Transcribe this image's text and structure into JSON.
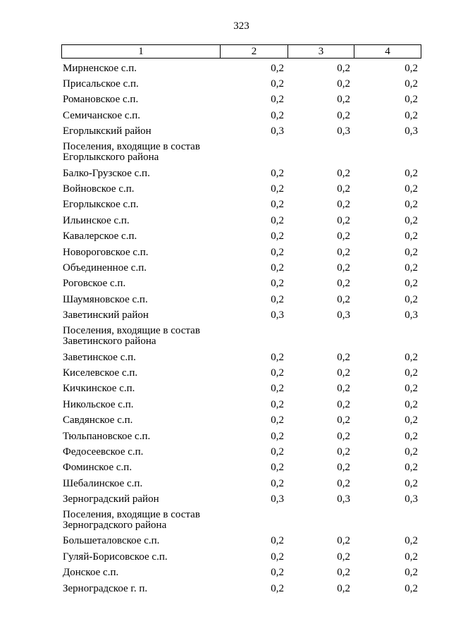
{
  "page": {
    "number": "323"
  },
  "table": {
    "header": [
      "1",
      "2",
      "3",
      "4"
    ],
    "rows": [
      {
        "type": "data",
        "label": "Мирненское с.п.",
        "values": [
          "0,2",
          "0,2",
          "0,2"
        ]
      },
      {
        "type": "data",
        "label": "Присальское с.п.",
        "values": [
          "0,2",
          "0,2",
          "0,2"
        ]
      },
      {
        "type": "data",
        "label": "Романовское с.п.",
        "values": [
          "0,2",
          "0,2",
          "0,2"
        ]
      },
      {
        "type": "data",
        "label": "Семичанское с.п.",
        "values": [
          "0,2",
          "0,2",
          "0,2"
        ]
      },
      {
        "type": "data",
        "label": "Егорлыкский район",
        "values": [
          "0,3",
          "0,3",
          "0,3"
        ]
      },
      {
        "type": "section",
        "label": "Поселения, входящие в состав Егорлыкского района",
        "values": [
          "",
          "",
          ""
        ]
      },
      {
        "type": "data",
        "label": "Балко-Грузское с.п.",
        "values": [
          "0,2",
          "0,2",
          "0,2"
        ]
      },
      {
        "type": "data",
        "label": "Войновское с.п.",
        "values": [
          "0,2",
          "0,2",
          "0,2"
        ]
      },
      {
        "type": "data",
        "label": "Егорлыкское с.п.",
        "values": [
          "0,2",
          "0,2",
          "0,2"
        ]
      },
      {
        "type": "data",
        "label": "Ильинское с.п.",
        "values": [
          "0,2",
          "0,2",
          "0,2"
        ]
      },
      {
        "type": "data",
        "label": "Кавалерское с.п.",
        "values": [
          "0,2",
          "0,2",
          "0,2"
        ]
      },
      {
        "type": "data",
        "label": "Новороговское с.п.",
        "values": [
          "0,2",
          "0,2",
          "0,2"
        ]
      },
      {
        "type": "data",
        "label": "Объединенное с.п.",
        "values": [
          "0,2",
          "0,2",
          "0,2"
        ]
      },
      {
        "type": "data",
        "label": "Роговское с.п.",
        "values": [
          "0,2",
          "0,2",
          "0,2"
        ]
      },
      {
        "type": "data",
        "label": "Шаумяновское с.п.",
        "values": [
          "0,2",
          "0,2",
          "0,2"
        ]
      },
      {
        "type": "data",
        "label": "Заветинский район",
        "values": [
          "0,3",
          "0,3",
          "0,3"
        ]
      },
      {
        "type": "section",
        "label": "Поселения, входящие в состав Заветинского района",
        "values": [
          "",
          "",
          ""
        ]
      },
      {
        "type": "data",
        "label": "Заветинское с.п.",
        "values": [
          "0,2",
          "0,2",
          "0,2"
        ]
      },
      {
        "type": "data",
        "label": "Киселевское с.п.",
        "values": [
          "0,2",
          "0,2",
          "0,2"
        ]
      },
      {
        "type": "data",
        "label": "Кичкинское с.п.",
        "values": [
          "0,2",
          "0,2",
          "0,2"
        ]
      },
      {
        "type": "data",
        "label": "Никольское с.п.",
        "values": [
          "0,2",
          "0,2",
          "0,2"
        ]
      },
      {
        "type": "data",
        "label": "Савдянское с.п.",
        "values": [
          "0,2",
          "0,2",
          "0,2"
        ]
      },
      {
        "type": "data",
        "label": "Тюльпановское с.п.",
        "values": [
          "0,2",
          "0,2",
          "0,2"
        ]
      },
      {
        "type": "data",
        "label": "Федосеевское с.п.",
        "values": [
          "0,2",
          "0,2",
          "0,2"
        ]
      },
      {
        "type": "data",
        "label": "Фоминское с.п.",
        "values": [
          "0,2",
          "0,2",
          "0,2"
        ]
      },
      {
        "type": "data",
        "label": "Шебалинское с.п.",
        "values": [
          "0,2",
          "0,2",
          "0,2"
        ]
      },
      {
        "type": "data",
        "label": "Зерноградский район",
        "values": [
          "0,3",
          "0,3",
          "0,3"
        ]
      },
      {
        "type": "section",
        "label": "Поселения, входящие в состав Зерноградского района",
        "values": [
          "",
          "",
          ""
        ]
      },
      {
        "type": "data",
        "label": "Большеталовское с.п.",
        "values": [
          "0,2",
          "0,2",
          "0,2"
        ]
      },
      {
        "type": "data",
        "label": "Гуляй-Борисовское с.п.",
        "values": [
          "0,2",
          "0,2",
          "0,2"
        ]
      },
      {
        "type": "data",
        "label": "Донское с.п.",
        "values": [
          "0,2",
          "0,2",
          "0,2"
        ]
      },
      {
        "type": "data",
        "label": "Зерноградское г. п.",
        "values": [
          "0,2",
          "0,2",
          "0,2"
        ]
      }
    ]
  }
}
